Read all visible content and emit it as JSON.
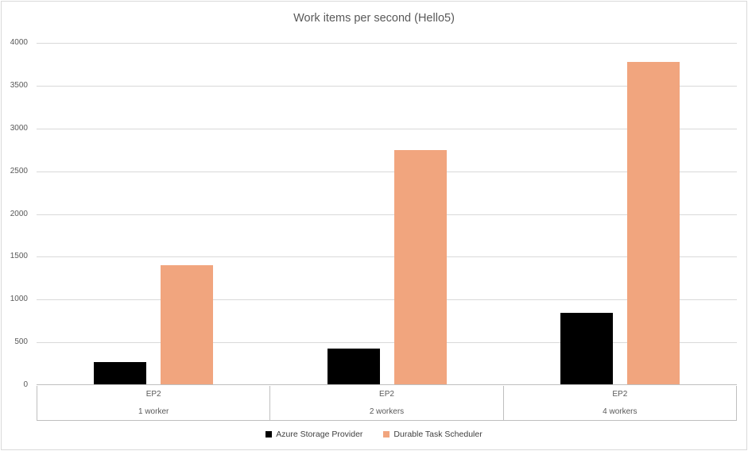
{
  "chart_data": {
    "type": "bar",
    "title": "Work items per second (Hello5)",
    "categories": [
      {
        "label": "EP2",
        "sublabel": "1 worker"
      },
      {
        "label": "EP2",
        "sublabel": "2 workers"
      },
      {
        "label": "EP2",
        "sublabel": "4 workers"
      }
    ],
    "series": [
      {
        "name": "Azure Storage Provider",
        "color": "#000000",
        "values": [
          260,
          420,
          840
        ]
      },
      {
        "name": "Durable Task Scheduler",
        "color": "#F1A57E",
        "values": [
          1400,
          2740,
          3780
        ]
      }
    ],
    "xlabel": "",
    "ylabel": "",
    "y_axis": {
      "min": 0,
      "max": 4000,
      "step": 500,
      "ticks": [
        "0",
        "500",
        "1000",
        "1500",
        "2000",
        "2500",
        "3000",
        "3500",
        "4000"
      ]
    },
    "grid": true,
    "legend_position": "bottom",
    "style": {
      "background": "#FFFFFF",
      "border_color": "#D9D9D9",
      "gridline_color": "#D9D9D9",
      "axis_line_color": "#BFBFBF",
      "title_color": "#595959",
      "axis_text_color": "#595959",
      "legend_text_color": "#404040"
    }
  }
}
